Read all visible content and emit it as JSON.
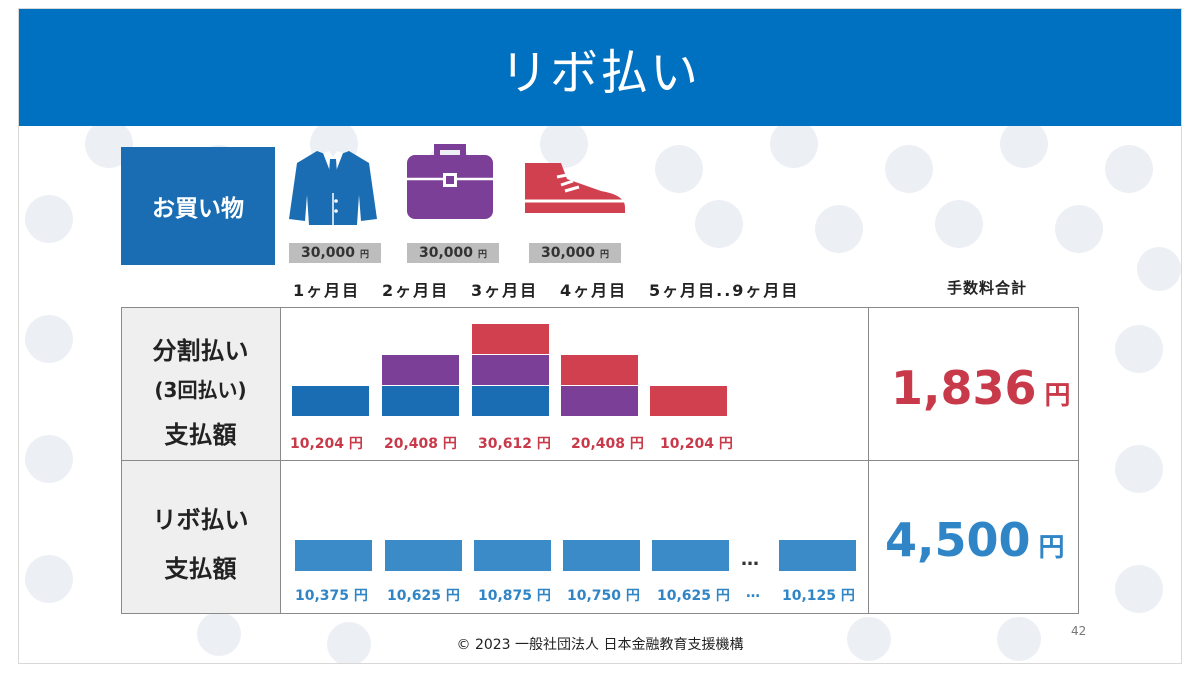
{
  "title": "リボ払い",
  "shopping_label": "お買い物",
  "prices": [
    {
      "item": "jacket-icon",
      "amount": "30,000",
      "unit": "円"
    },
    {
      "item": "briefcase-icon",
      "amount": "30,000",
      "unit": "円"
    },
    {
      "item": "shoe-icon",
      "amount": "30,000",
      "unit": "円"
    }
  ],
  "months": [
    "1ヶ月目",
    "2ヶ月目",
    "3ヶ月目",
    "4ヶ月目",
    "5ヶ月目..9ヶ月目"
  ],
  "fee_header": "手数料合計",
  "installment": {
    "label_line1": "分割払い",
    "label_line2": "(3回払い)",
    "label_line3": "支払額",
    "amounts": [
      "10,204 円",
      "20,408 円",
      "30,612 円",
      "20,408 円",
      "10,204 円"
    ],
    "fee_value": "1,836",
    "fee_unit": "円"
  },
  "revolving": {
    "label_line1": "リボ払い",
    "label_line2": "支払額",
    "amounts": [
      "10,375 円",
      "10,625 円",
      "10,875 円",
      "10,750 円",
      "10,625 円",
      "10,125 円"
    ],
    "ellipsis": "…",
    "fee_value": "4,500",
    "fee_unit": "円"
  },
  "chart_data": {
    "type": "bar",
    "stacked": true,
    "categories": [
      "1ヶ月目",
      "2ヶ月目",
      "3ヶ月目",
      "4ヶ月目",
      "5ヶ月目"
    ],
    "installment_stacks": [
      [
        "#1b6db3"
      ],
      [
        "#1b6db3",
        "#7b3f98"
      ],
      [
        "#1b6db3",
        "#7b3f98",
        "#d0404f"
      ],
      [
        "#7b3f98",
        "#d0404f"
      ],
      [
        "#d0404f"
      ]
    ],
    "revolving_values": [
      10375,
      10625,
      10875,
      10750,
      10625,
      10125
    ]
  },
  "colors": {
    "blue": "#1b6db3",
    "purple": "#7b3f98",
    "red": "#d0404f",
    "light_blue": "#3a8bc8",
    "title_bar": "#0070c0"
  },
  "footer": "© 2023 一般社団法人 日本金融教育支援機構",
  "page_number": "42"
}
